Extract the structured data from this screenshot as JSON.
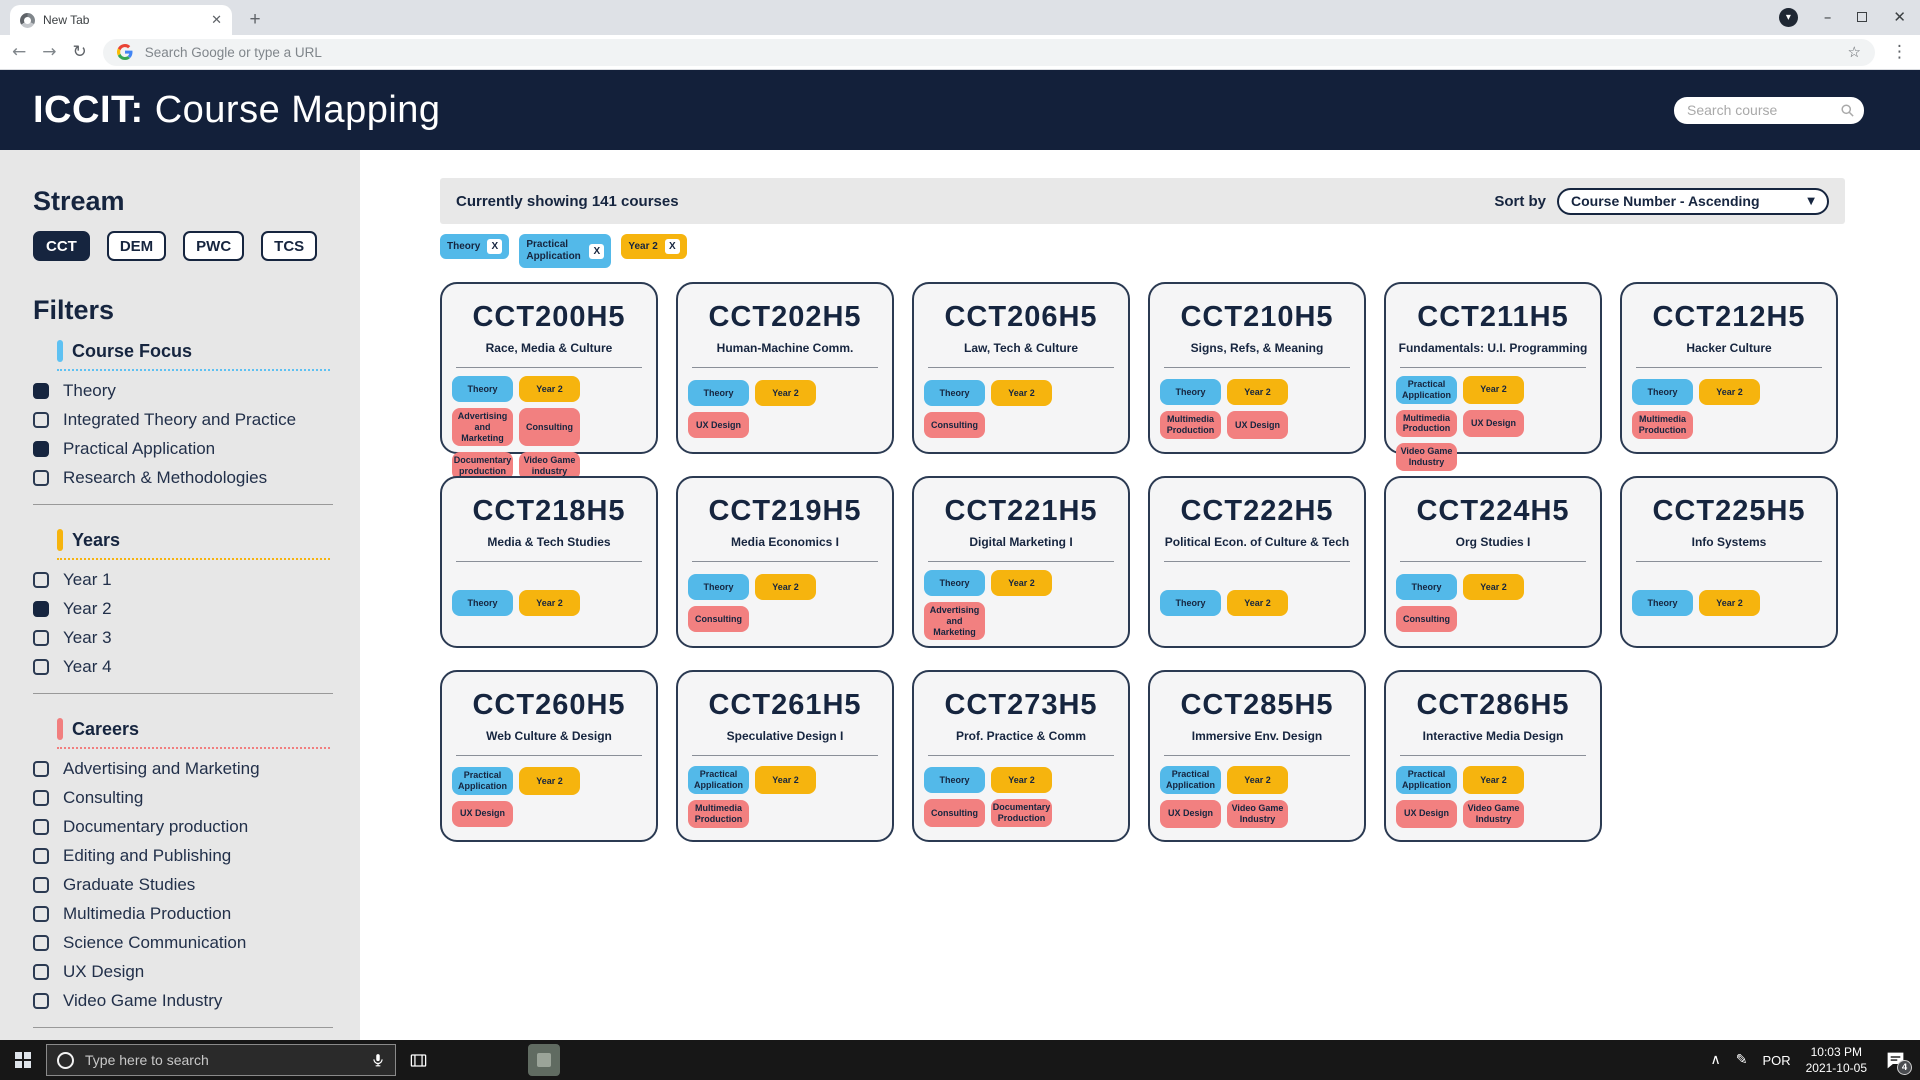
{
  "browser": {
    "tab_title": "New Tab",
    "url_placeholder": "Search Google or type a URL"
  },
  "header": {
    "brand_bold": "ICCIT:",
    "brand_light": "Course Mapping",
    "search_placeholder": "Search course"
  },
  "sidebar": {
    "stream_heading": "Stream",
    "streams": [
      {
        "label": "CCT",
        "active": true
      },
      {
        "label": "DEM",
        "active": false
      },
      {
        "label": "PWC",
        "active": false
      },
      {
        "label": "TCS",
        "active": false
      }
    ],
    "filters_heading": "Filters",
    "sections": [
      {
        "name": "Course Focus",
        "accent": "#5ec1f2",
        "items": [
          {
            "label": "Theory",
            "checked": true
          },
          {
            "label": "Integrated Theory and Practice",
            "checked": false
          },
          {
            "label": "Practical Application",
            "checked": true
          },
          {
            "label": "Research & Methodologies",
            "checked": false
          }
        ]
      },
      {
        "name": "Years",
        "accent": "#f6b40e",
        "items": [
          {
            "label": "Year 1",
            "checked": false
          },
          {
            "label": "Year 2",
            "checked": true
          },
          {
            "label": "Year 3",
            "checked": false
          },
          {
            "label": "Year 4",
            "checked": false
          }
        ]
      },
      {
        "name": "Careers",
        "accent": "#f17e7e",
        "items": [
          {
            "label": "Advertising and Marketing",
            "checked": false
          },
          {
            "label": "Consulting",
            "checked": false
          },
          {
            "label": "Documentary production",
            "checked": false
          },
          {
            "label": "Editing and Publishing",
            "checked": false
          },
          {
            "label": "Graduate Studies",
            "checked": false
          },
          {
            "label": "Multimedia Production",
            "checked": false
          },
          {
            "label": "Science Communication",
            "checked": false
          },
          {
            "label": "UX Design",
            "checked": false
          },
          {
            "label": "Video Game Industry",
            "checked": false
          }
        ]
      }
    ]
  },
  "toolbar": {
    "count_text": "Currently showing 141 courses",
    "sort_label": "Sort by",
    "sort_value": "Course Number - Ascending"
  },
  "tag_colors": {
    "focus": "#53b9e9",
    "year": "#f6b40e",
    "career": "#f28080"
  },
  "active_filters": [
    {
      "label": "Theory",
      "type": "focus",
      "close_label": "X"
    },
    {
      "label": "Practical Application",
      "type": "focus",
      "close_label": "X"
    },
    {
      "label": "Year 2",
      "type": "year",
      "close_label": "X"
    }
  ],
  "courses": [
    {
      "code": "CCT200H5",
      "name": "Race, Media & Culture",
      "tags": [
        {
          "label": "Theory",
          "type": "focus"
        },
        {
          "label": "Year 2",
          "type": "year"
        },
        {
          "label": "Advertising and Marketing",
          "type": "career"
        },
        {
          "label": "Consulting",
          "type": "career"
        },
        {
          "label": "Documentary production",
          "type": "career"
        },
        {
          "label": "Video Game industry",
          "type": "career"
        }
      ]
    },
    {
      "code": "CCT202H5",
      "name": "Human-Machine Comm.",
      "tags": [
        {
          "label": "Theory",
          "type": "focus"
        },
        {
          "label": "Year 2",
          "type": "year"
        },
        {
          "label": "UX Design",
          "type": "career"
        }
      ]
    },
    {
      "code": "CCT206H5",
      "name": "Law, Tech & Culture",
      "tags": [
        {
          "label": "Theory",
          "type": "focus"
        },
        {
          "label": "Year 2",
          "type": "year"
        },
        {
          "label": "Consulting",
          "type": "career"
        }
      ]
    },
    {
      "code": "CCT210H5",
      "name": "Signs, Refs, & Meaning",
      "tags": [
        {
          "label": "Theory",
          "type": "focus"
        },
        {
          "label": "Year 2",
          "type": "year"
        },
        {
          "label": "Multimedia Production",
          "type": "career"
        },
        {
          "label": "UX Design",
          "type": "career"
        }
      ]
    },
    {
      "code": "CCT211H5",
      "name": "Fundamentals: U.I. Programming",
      "tags": [
        {
          "label": "Practical Application",
          "type": "focus"
        },
        {
          "label": "Year 2",
          "type": "year"
        },
        {
          "label": "Multimedia Production",
          "type": "career"
        },
        {
          "label": "UX Design",
          "type": "career"
        },
        {
          "label": "Video Game Industry",
          "type": "career"
        }
      ]
    },
    {
      "code": "CCT212H5",
      "name": "Hacker Culture",
      "tags": [
        {
          "label": "Theory",
          "type": "focus"
        },
        {
          "label": "Year 2",
          "type": "year"
        },
        {
          "label": "Multimedia Production",
          "type": "career"
        }
      ]
    },
    {
      "code": "CCT218H5",
      "name": "Media & Tech Studies",
      "tags": [
        {
          "label": "Theory",
          "type": "focus"
        },
        {
          "label": "Year 2",
          "type": "year"
        }
      ]
    },
    {
      "code": "CCT219H5",
      "name": "Media Economics I",
      "tags": [
        {
          "label": "Theory",
          "type": "focus"
        },
        {
          "label": "Year 2",
          "type": "year"
        },
        {
          "label": "Consulting",
          "type": "career"
        }
      ]
    },
    {
      "code": "CCT221H5",
      "name": "Digital Marketing I",
      "tags": [
        {
          "label": "Theory",
          "type": "focus"
        },
        {
          "label": "Year 2",
          "type": "year"
        },
        {
          "label": "Advertising and Marketing",
          "type": "career"
        }
      ]
    },
    {
      "code": "CCT222H5",
      "name": "Political Econ. of Culture & Tech",
      "tags": [
        {
          "label": "Theory",
          "type": "focus"
        },
        {
          "label": "Year 2",
          "type": "year"
        }
      ]
    },
    {
      "code": "CCT224H5",
      "name": "Org Studies I",
      "tags": [
        {
          "label": "Theory",
          "type": "focus"
        },
        {
          "label": "Year 2",
          "type": "year"
        },
        {
          "label": "Consulting",
          "type": "career"
        }
      ]
    },
    {
      "code": "CCT225H5",
      "name": "Info Systems",
      "tags": [
        {
          "label": "Theory",
          "type": "focus"
        },
        {
          "label": "Year 2",
          "type": "year"
        }
      ]
    },
    {
      "code": "CCT260H5",
      "name": "Web Culture & Design",
      "tags": [
        {
          "label": "Practical Application",
          "type": "focus"
        },
        {
          "label": "Year 2",
          "type": "year"
        },
        {
          "label": "UX Design",
          "type": "career"
        }
      ]
    },
    {
      "code": "CCT261H5",
      "name": "Speculative Design I",
      "tags": [
        {
          "label": "Practical Application",
          "type": "focus"
        },
        {
          "label": "Year 2",
          "type": "year"
        },
        {
          "label": "Multimedia Production",
          "type": "career"
        }
      ]
    },
    {
      "code": "CCT273H5",
      "name": "Prof. Practice & Comm",
      "tags": [
        {
          "label": "Theory",
          "type": "focus"
        },
        {
          "label": "Year 2",
          "type": "year"
        },
        {
          "label": "Consulting",
          "type": "career"
        },
        {
          "label": "Documentary Production",
          "type": "career"
        }
      ]
    },
    {
      "code": "CCT285H5",
      "name": "Immersive Env. Design",
      "tags": [
        {
          "label": "Practical Application",
          "type": "focus"
        },
        {
          "label": "Year 2",
          "type": "year"
        },
        {
          "label": "UX Design",
          "type": "career"
        },
        {
          "label": "Video Game Industry",
          "type": "career"
        }
      ]
    },
    {
      "code": "CCT286H5",
      "name": "Interactive Media Design",
      "tags": [
        {
          "label": "Practical Application",
          "type": "focus"
        },
        {
          "label": "Year 2",
          "type": "year"
        },
        {
          "label": "UX Design",
          "type": "career"
        },
        {
          "label": "Video Game Industry",
          "type": "career"
        }
      ]
    }
  ],
  "taskbar": {
    "search_placeholder": "Type here to search",
    "language": "POR",
    "time": "10:03 PM",
    "date": "2021-10-05",
    "notification_count": "4"
  }
}
